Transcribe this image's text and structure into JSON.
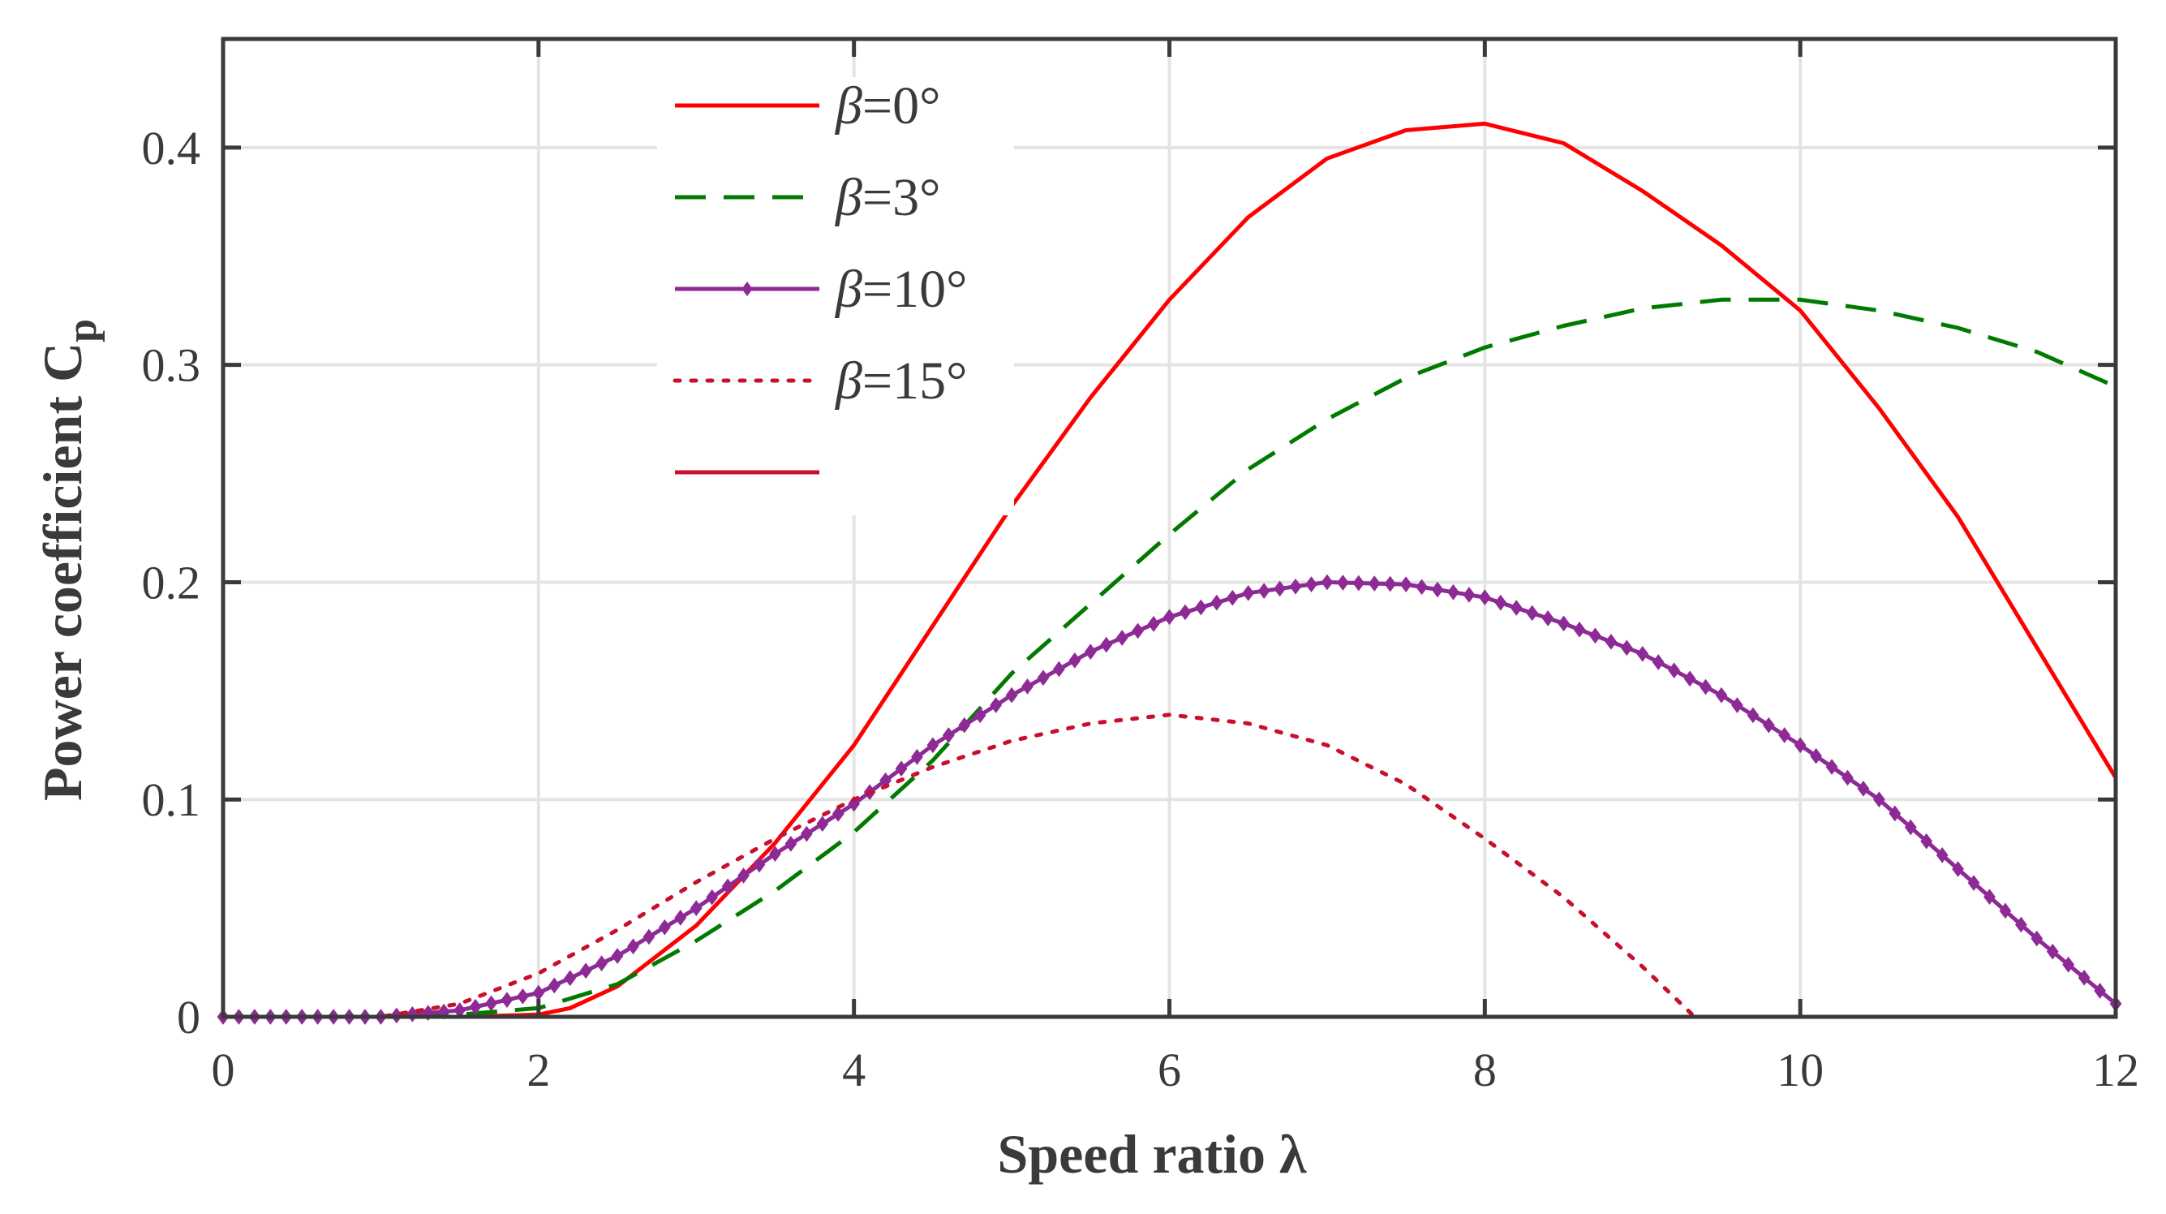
{
  "chart_data": {
    "type": "line",
    "title": "",
    "xlabel": "Speed ratio λ",
    "ylabel": "Power coefficient C",
    "ylabel_sub": "p",
    "xlim": [
      0,
      12
    ],
    "ylim": [
      0,
      0.45
    ],
    "xticks": [
      0,
      2,
      4,
      6,
      8,
      10,
      12
    ],
    "xtick_labels": [
      "0",
      "2",
      "4",
      "6",
      "8",
      "10",
      "12"
    ],
    "yticks": [
      0,
      0.1,
      0.2,
      0.3,
      0.4
    ],
    "ytick_labels": [
      "0",
      "0.1",
      "0.2",
      "0.3",
      "0.4"
    ],
    "grid": true,
    "legend_position": "top-left-center",
    "series": [
      {
        "name": "β=0°",
        "legend_symbol": "β",
        "legend_value": "=0°",
        "color": "#ff0000",
        "style": "solid",
        "x": [
          0,
          1,
          1.5,
          2,
          2.2,
          2.5,
          3,
          3.5,
          4,
          4.5,
          5,
          5.5,
          6,
          6.5,
          7,
          7.5,
          8,
          8.5,
          9,
          9.5,
          10,
          10.5,
          11,
          11.5,
          12
        ],
        "y": [
          0,
          0,
          0,
          0.001,
          0.004,
          0.014,
          0.042,
          0.08,
          0.125,
          0.18,
          0.235,
          0.285,
          0.33,
          0.368,
          0.395,
          0.408,
          0.411,
          0.402,
          0.38,
          0.355,
          0.325,
          0.28,
          0.23,
          0.17,
          0.11
        ]
      },
      {
        "name": "β=3°",
        "legend_symbol": "β",
        "legend_value": "=3°",
        "color": "#007a00",
        "style": "dashed",
        "x": [
          0,
          1,
          1.5,
          2,
          2.5,
          3,
          3.5,
          4,
          4.5,
          5,
          5.5,
          6,
          6.5,
          7,
          7.5,
          8,
          8.5,
          9,
          9.5,
          10,
          10.5,
          11,
          11.5,
          12
        ],
        "y": [
          0,
          0,
          0.001,
          0.004,
          0.015,
          0.035,
          0.058,
          0.085,
          0.118,
          0.158,
          0.19,
          0.222,
          0.252,
          0.275,
          0.294,
          0.308,
          0.318,
          0.326,
          0.33,
          0.33,
          0.325,
          0.317,
          0.306,
          0.29
        ]
      },
      {
        "name": "β=10°",
        "legend_symbol": "β",
        "legend_value": "=10°",
        "color": "#8e2a96",
        "style": "solid-markers",
        "x": [
          0,
          1,
          1.5,
          2,
          2.5,
          3,
          3.5,
          4,
          4.5,
          5,
          5.5,
          6,
          6.5,
          7,
          7.5,
          8,
          8.5,
          9,
          9.5,
          10,
          10.5,
          11,
          11.5,
          12
        ],
        "y": [
          0,
          0,
          0.003,
          0.011,
          0.028,
          0.05,
          0.075,
          0.098,
          0.125,
          0.148,
          0.168,
          0.184,
          0.195,
          0.2,
          0.199,
          0.193,
          0.181,
          0.167,
          0.148,
          0.125,
          0.1,
          0.068,
          0.036,
          0.006
        ]
      },
      {
        "name": "β=15°",
        "legend_symbol": "β",
        "legend_value": "=15°",
        "color": "#c8102e",
        "style": "dotted",
        "x": [
          0,
          1,
          1.5,
          2,
          2.5,
          3,
          3.5,
          4,
          4.5,
          5,
          5.5,
          6,
          6.5,
          7,
          7.5,
          8,
          8.5,
          9,
          9.33
        ],
        "y": [
          0,
          0,
          0.006,
          0.02,
          0.04,
          0.062,
          0.082,
          0.1,
          0.115,
          0.127,
          0.135,
          0.139,
          0.135,
          0.125,
          0.107,
          0.082,
          0.055,
          0.023,
          0
        ]
      }
    ],
    "extra_legend_line_color": "#c8102e"
  }
}
